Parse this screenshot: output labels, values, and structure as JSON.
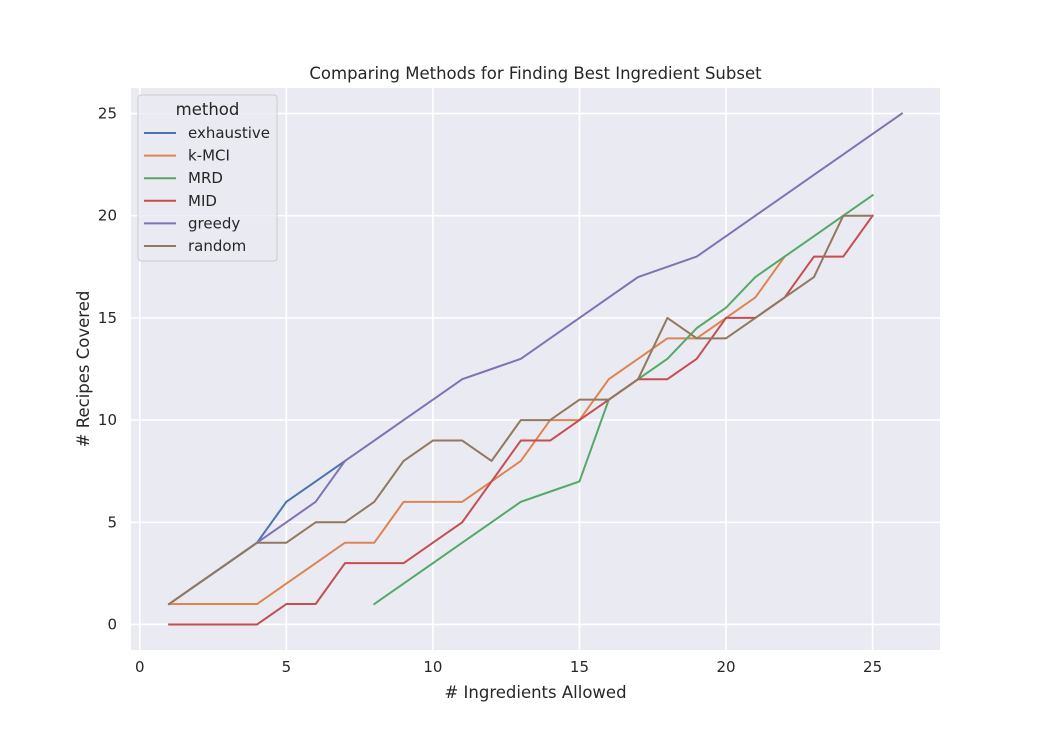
{
  "chart_data": {
    "type": "line",
    "title": "Comparing Methods for Finding Best Ingredient Subset",
    "xlabel": "# Ingredients Allowed",
    "ylabel": "# Recipes Covered",
    "xlim": [
      -0.3,
      27.3
    ],
    "ylim": [
      -1.25,
      26.25
    ],
    "xticks": [
      0,
      5,
      10,
      15,
      20,
      25
    ],
    "yticks": [
      0,
      5,
      10,
      15,
      20,
      25
    ],
    "grid": true,
    "legend_title": "method",
    "legend_position": "top-left",
    "series": [
      {
        "name": "exhaustive",
        "color": "#4c72b0",
        "x": [
          1,
          2,
          3,
          4,
          5,
          6,
          7
        ],
        "y": [
          1,
          2,
          3,
          4,
          6,
          7,
          8
        ]
      },
      {
        "name": "k-MCI",
        "color": "#dd8452",
        "x": [
          1,
          2,
          3,
          4,
          5,
          6,
          7,
          8,
          9,
          10,
          11,
          12,
          13,
          14,
          15,
          16,
          17,
          18,
          19,
          20,
          21,
          22
        ],
        "y": [
          1,
          1,
          1,
          1,
          2,
          3,
          4,
          4,
          6,
          6,
          6,
          7,
          8,
          10,
          10,
          12,
          13,
          14,
          14,
          15,
          16,
          18
        ]
      },
      {
        "name": "MRD",
        "color": "#55a868",
        "x": [
          8,
          9,
          10,
          11,
          12,
          13,
          14,
          15,
          16,
          17,
          18,
          19,
          20,
          21,
          22,
          23,
          24,
          25
        ],
        "y": [
          1,
          2,
          3,
          4,
          5,
          6,
          6.5,
          7,
          11,
          12,
          13,
          14.5,
          15.5,
          17,
          18,
          19,
          20,
          21
        ]
      },
      {
        "name": "MID",
        "color": "#c44e52",
        "x": [
          1,
          2,
          3,
          4,
          5,
          6,
          7,
          8,
          9,
          10,
          11,
          12,
          13,
          14,
          15,
          16,
          17,
          18,
          19,
          20,
          21,
          22,
          23,
          24,
          25
        ],
        "y": [
          0,
          0,
          0,
          0,
          1,
          1,
          3,
          3,
          3,
          4,
          5,
          7,
          9,
          9,
          10,
          11,
          12,
          12,
          13,
          15,
          15,
          16,
          18,
          18,
          20
        ]
      },
      {
        "name": "greedy",
        "color": "#8172b3",
        "x": [
          1,
          2,
          3,
          4,
          5,
          6,
          7,
          8,
          9,
          10,
          11,
          12,
          13,
          14,
          15,
          16,
          17,
          18,
          19,
          20,
          21,
          22,
          23,
          24,
          25,
          26
        ],
        "y": [
          1,
          2,
          3,
          4,
          5,
          6,
          8,
          9,
          10,
          11,
          12,
          12.5,
          13,
          14,
          15,
          16,
          17,
          17.5,
          18,
          19,
          20,
          21,
          22,
          23,
          24,
          25
        ]
      },
      {
        "name": "random",
        "color": "#937860",
        "x": [
          1,
          2,
          3,
          4,
          5,
          6,
          7,
          8,
          9,
          10,
          11,
          12,
          13,
          14,
          15,
          16,
          17,
          18,
          19,
          20,
          21,
          22,
          23,
          24,
          25
        ],
        "y": [
          1,
          2,
          3,
          4,
          4,
          5,
          5,
          6,
          8,
          9,
          9,
          8,
          10,
          10,
          11,
          11,
          12,
          15,
          14,
          14,
          15,
          16,
          17,
          20,
          20
        ]
      }
    ]
  },
  "style": {
    "plot_background": "#eaeaf2",
    "grid_color": "#ffffff",
    "text_color": "#262626"
  }
}
